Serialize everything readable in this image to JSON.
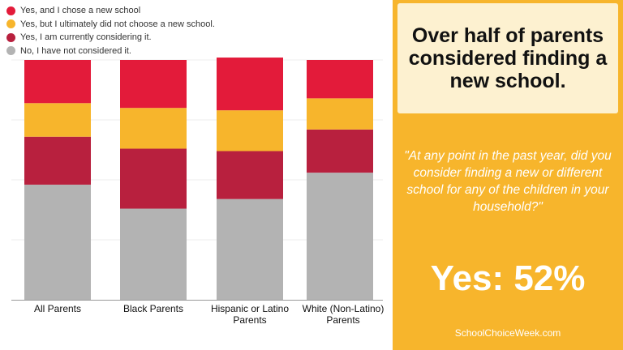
{
  "chart_data": {
    "type": "bar",
    "stacked": true,
    "categories": [
      "All Parents",
      "Black Parents",
      "Hispanic or Latino Parents",
      "White (Non-Latino) Parents"
    ],
    "series": [
      {
        "name": "No, I have not considered it.",
        "color": "#b3b3b3",
        "values": [
          48,
          38,
          42,
          53
        ]
      },
      {
        "name": "Yes, I am currently considering it.",
        "color": "#b8203e",
        "values": [
          20,
          25,
          20,
          18
        ]
      },
      {
        "name": "Yes, but I ultimately did not choose a new school.",
        "color": "#f7b52c",
        "values": [
          14,
          17,
          17,
          13
        ]
      },
      {
        "name": "Yes, and I chose a new school",
        "color": "#e31b3a",
        "values": [
          18,
          20,
          22,
          16
        ]
      }
    ],
    "ylim": [
      0,
      100
    ],
    "grid": true,
    "legend": "top-left"
  },
  "legend": {
    "items": [
      {
        "label": "Yes, and I chose a new school",
        "color": "#e31b3a"
      },
      {
        "label": "Yes, but I ultimately did not choose a new school.",
        "color": "#f7b52c"
      },
      {
        "label": "Yes, I am currently considering it.",
        "color": "#b8203e"
      },
      {
        "label": "No, I have not considered it.",
        "color": "#b3b3b3"
      }
    ]
  },
  "categories": [
    "All Parents",
    "Black Parents",
    "Hispanic or Latino Parents",
    "White (Non-Latino) Parents"
  ],
  "panel": {
    "headline": "Over half of parents considered finding a new school.",
    "question": "\"At any point in the past year, did you consider finding a new or different school for any of the children in your household?\"",
    "answer": "Yes: 52%",
    "source": "SchoolChoiceWeek.com",
    "background": "#f7b52c",
    "headline_background": "#fdf1d0"
  }
}
